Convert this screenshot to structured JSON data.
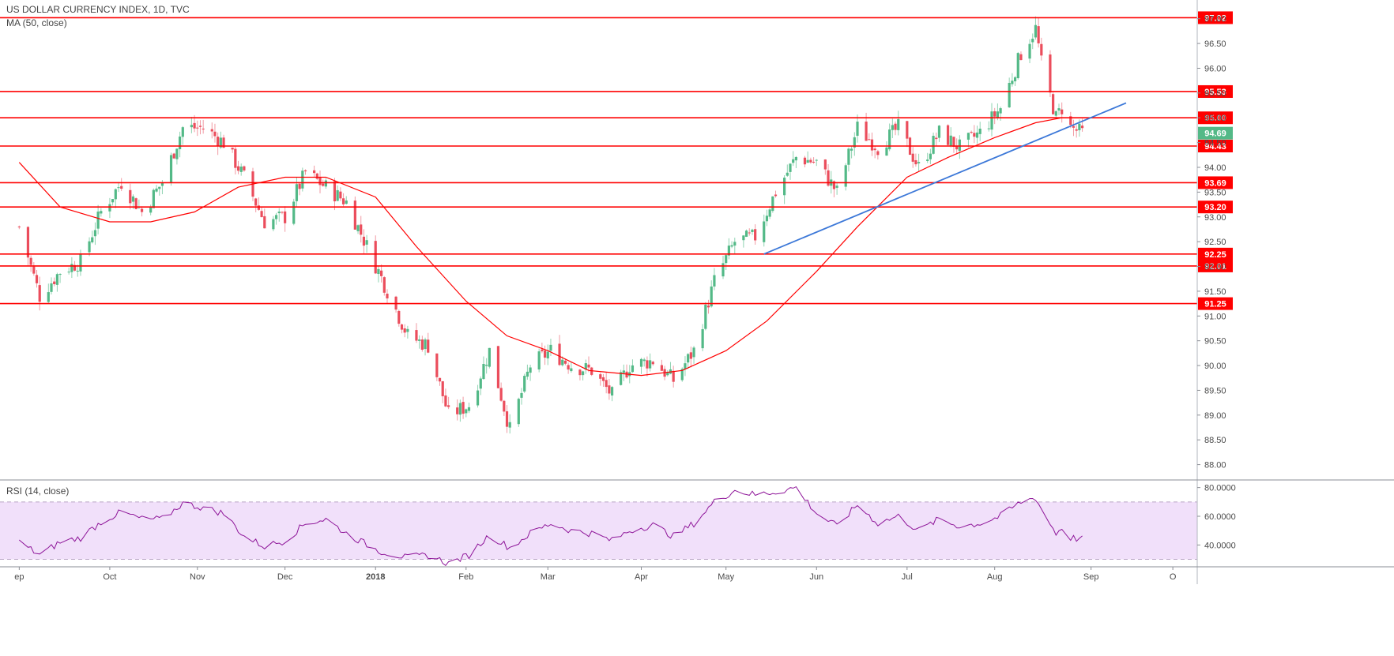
{
  "header": {
    "title": "US DOLLAR CURRENCY INDEX, 1D, TVC",
    "indicator": "MA (50, close)",
    "rsi_title": "RSI (14, close)"
  },
  "colors": {
    "up": "#53b987",
    "down": "#eb4d5c",
    "ma": "#ff0000",
    "trendline": "#3c78d8",
    "level": "#ff0000",
    "rsi": "#8e1599",
    "rsi_band": "#f1e0fa",
    "last_price_bg": "#53b987"
  },
  "chart_data": [
    {
      "type": "candlestick",
      "title": "US DOLLAR CURRENCY INDEX, 1D, TVC",
      "ylim": [
        87.85,
        97.25
      ],
      "y_ticks": [
        "88.00",
        "88.50",
        "89.00",
        "89.50",
        "90.00",
        "90.50",
        "91.00",
        "91.50",
        "92.00",
        "92.50",
        "93.00",
        "93.50",
        "94.00",
        "94.50",
        "95.00",
        "95.50",
        "96.00",
        "96.50",
        "97.00"
      ],
      "x_ticks": [
        {
          "label": "ep",
          "date": "2017-09-01"
        },
        {
          "label": "Oct",
          "date": "2017-10-02"
        },
        {
          "label": "Nov",
          "date": "2017-11-01"
        },
        {
          "label": "Dec",
          "date": "2017-12-01"
        },
        {
          "label": "2018",
          "date": "2018-01-01"
        },
        {
          "label": "Feb",
          "date": "2018-02-01"
        },
        {
          "label": "Mar",
          "date": "2018-03-01"
        },
        {
          "label": "Apr",
          "date": "2018-04-02"
        },
        {
          "label": "May",
          "date": "2018-05-01"
        },
        {
          "label": "Jun",
          "date": "2018-06-01"
        },
        {
          "label": "Jul",
          "date": "2018-07-02"
        },
        {
          "label": "Aug",
          "date": "2018-08-01"
        },
        {
          "label": "Sep",
          "date": "2018-09-03"
        },
        {
          "label": "O",
          "date": "2018-10-01"
        }
      ],
      "close_path": [
        [
          "2017-09-01",
          92.8
        ],
        [
          "2017-09-08",
          91.4
        ],
        [
          "2017-09-15",
          91.9
        ],
        [
          "2017-09-22",
          92.1
        ],
        [
          "2017-09-29",
          93.1
        ],
        [
          "2017-10-06",
          93.7
        ],
        [
          "2017-10-13",
          93.1
        ],
        [
          "2017-10-20",
          93.7
        ],
        [
          "2017-10-27",
          94.8
        ],
        [
          "2017-11-03",
          94.8
        ],
        [
          "2017-11-10",
          94.5
        ],
        [
          "2017-11-17",
          93.8
        ],
        [
          "2017-11-24",
          92.9
        ],
        [
          "2017-12-01",
          93.0
        ],
        [
          "2017-12-08",
          93.9
        ],
        [
          "2017-12-15",
          93.6
        ],
        [
          "2017-12-22",
          93.3
        ],
        [
          "2018-01-02",
          91.9
        ],
        [
          "2018-01-12",
          90.6
        ],
        [
          "2018-01-19",
          90.4
        ],
        [
          "2018-01-26",
          89.0
        ],
        [
          "2018-02-02",
          89.2
        ],
        [
          "2018-02-09",
          90.3
        ],
        [
          "2018-02-16",
          88.7
        ],
        [
          "2018-02-23",
          90.0
        ],
        [
          "2018-03-02",
          90.3
        ],
        [
          "2018-03-09",
          90.0
        ],
        [
          "2018-03-16",
          89.9
        ],
        [
          "2018-03-23",
          89.4
        ],
        [
          "2018-03-29",
          90.0
        ],
        [
          "2018-04-06",
          90.1
        ],
        [
          "2018-04-13",
          89.7
        ],
        [
          "2018-04-20",
          90.3
        ],
        [
          "2018-04-27",
          91.7
        ],
        [
          "2018-05-04",
          92.5
        ],
        [
          "2018-05-11",
          92.6
        ],
        [
          "2018-05-18",
          93.5
        ],
        [
          "2018-05-25",
          94.2
        ],
        [
          "2018-06-01",
          94.1
        ],
        [
          "2018-06-08",
          93.5
        ],
        [
          "2018-06-15",
          94.8
        ],
        [
          "2018-06-22",
          94.4
        ],
        [
          "2018-06-29",
          94.8
        ],
        [
          "2018-07-06",
          94.0
        ],
        [
          "2018-07-13",
          94.7
        ],
        [
          "2018-07-20",
          94.4
        ],
        [
          "2018-07-27",
          94.7
        ],
        [
          "2018-08-03",
          95.2
        ],
        [
          "2018-08-10",
          96.3
        ],
        [
          "2018-08-15",
          96.8
        ],
        [
          "2018-08-17",
          96.1
        ],
        [
          "2018-08-22",
          95.0
        ],
        [
          "2018-08-24",
          95.2
        ],
        [
          "2018-08-27",
          94.8
        ],
        [
          "2018-08-31",
          94.69
        ]
      ],
      "ma50_path": [
        [
          "2017-09-01",
          94.1
        ],
        [
          "2017-09-15",
          93.2
        ],
        [
          "2017-10-02",
          92.9
        ],
        [
          "2017-10-16",
          92.9
        ],
        [
          "2017-10-31",
          93.1
        ],
        [
          "2017-11-15",
          93.6
        ],
        [
          "2017-12-01",
          93.8
        ],
        [
          "2017-12-15",
          93.8
        ],
        [
          "2018-01-01",
          93.4
        ],
        [
          "2018-01-15",
          92.4
        ],
        [
          "2018-02-01",
          91.3
        ],
        [
          "2018-02-15",
          90.6
        ],
        [
          "2018-03-01",
          90.3
        ],
        [
          "2018-03-15",
          89.9
        ],
        [
          "2018-04-02",
          89.8
        ],
        [
          "2018-04-16",
          89.9
        ],
        [
          "2018-05-01",
          90.3
        ],
        [
          "2018-05-15",
          90.9
        ],
        [
          "2018-06-01",
          91.9
        ],
        [
          "2018-06-15",
          92.8
        ],
        [
          "2018-07-02",
          93.8
        ],
        [
          "2018-07-16",
          94.2
        ],
        [
          "2018-08-01",
          94.6
        ],
        [
          "2018-08-15",
          94.9
        ],
        [
          "2018-08-24",
          95.0
        ]
      ],
      "trendline": [
        [
          "2018-05-14",
          92.25
        ],
        [
          "2018-09-15",
          95.3
        ]
      ],
      "levels": [
        "97.02",
        "95.53",
        "95.00",
        "94.43",
        "93.69",
        "93.20",
        "92.25",
        "92.01",
        "91.25"
      ],
      "last_price": "94.69"
    },
    {
      "type": "line",
      "title": "RSI (14, close)",
      "ylim": [
        27,
        82
      ],
      "y_ticks": [
        "40.0000",
        "60.0000",
        "80.0000"
      ],
      "band": [
        30,
        70
      ],
      "values": [
        [
          "2017-09-01",
          42
        ],
        [
          "2017-09-08",
          33
        ],
        [
          "2017-09-15",
          42
        ],
        [
          "2017-09-22",
          45
        ],
        [
          "2017-09-29",
          56
        ],
        [
          "2017-10-06",
          63
        ],
        [
          "2017-10-13",
          58
        ],
        [
          "2017-10-20",
          58
        ],
        [
          "2017-10-27",
          69
        ],
        [
          "2017-11-03",
          66
        ],
        [
          "2017-11-10",
          62
        ],
        [
          "2017-11-17",
          46
        ],
        [
          "2017-11-24",
          39
        ],
        [
          "2017-12-01",
          43
        ],
        [
          "2017-12-08",
          55
        ],
        [
          "2017-12-15",
          58
        ],
        [
          "2017-12-22",
          48
        ],
        [
          "2018-01-02",
          36
        ],
        [
          "2018-01-12",
          31
        ],
        [
          "2018-01-19",
          33
        ],
        [
          "2018-01-26",
          27
        ],
        [
          "2018-02-02",
          33
        ],
        [
          "2018-02-09",
          47
        ],
        [
          "2018-02-16",
          38
        ],
        [
          "2018-02-23",
          48
        ],
        [
          "2018-03-02",
          55
        ],
        [
          "2018-03-09",
          50
        ],
        [
          "2018-03-16",
          48
        ],
        [
          "2018-03-23",
          43
        ],
        [
          "2018-03-29",
          50
        ],
        [
          "2018-04-06",
          54
        ],
        [
          "2018-04-13",
          46
        ],
        [
          "2018-04-20",
          55
        ],
        [
          "2018-04-27",
          70
        ],
        [
          "2018-05-04",
          78
        ],
        [
          "2018-05-11",
          75
        ],
        [
          "2018-05-18",
          77
        ],
        [
          "2018-05-25",
          80
        ],
        [
          "2018-06-01",
          62
        ],
        [
          "2018-06-08",
          53
        ],
        [
          "2018-06-15",
          68
        ],
        [
          "2018-06-22",
          55
        ],
        [
          "2018-06-29",
          60
        ],
        [
          "2018-07-06",
          50
        ],
        [
          "2018-07-13",
          58
        ],
        [
          "2018-07-20",
          53
        ],
        [
          "2018-07-27",
          55
        ],
        [
          "2018-08-03",
          60
        ],
        [
          "2018-08-10",
          70
        ],
        [
          "2018-08-15",
          73
        ],
        [
          "2018-08-17",
          65
        ],
        [
          "2018-08-22",
          48
        ],
        [
          "2018-08-24",
          52
        ],
        [
          "2018-08-27",
          45
        ],
        [
          "2018-08-31",
          44
        ]
      ]
    }
  ]
}
